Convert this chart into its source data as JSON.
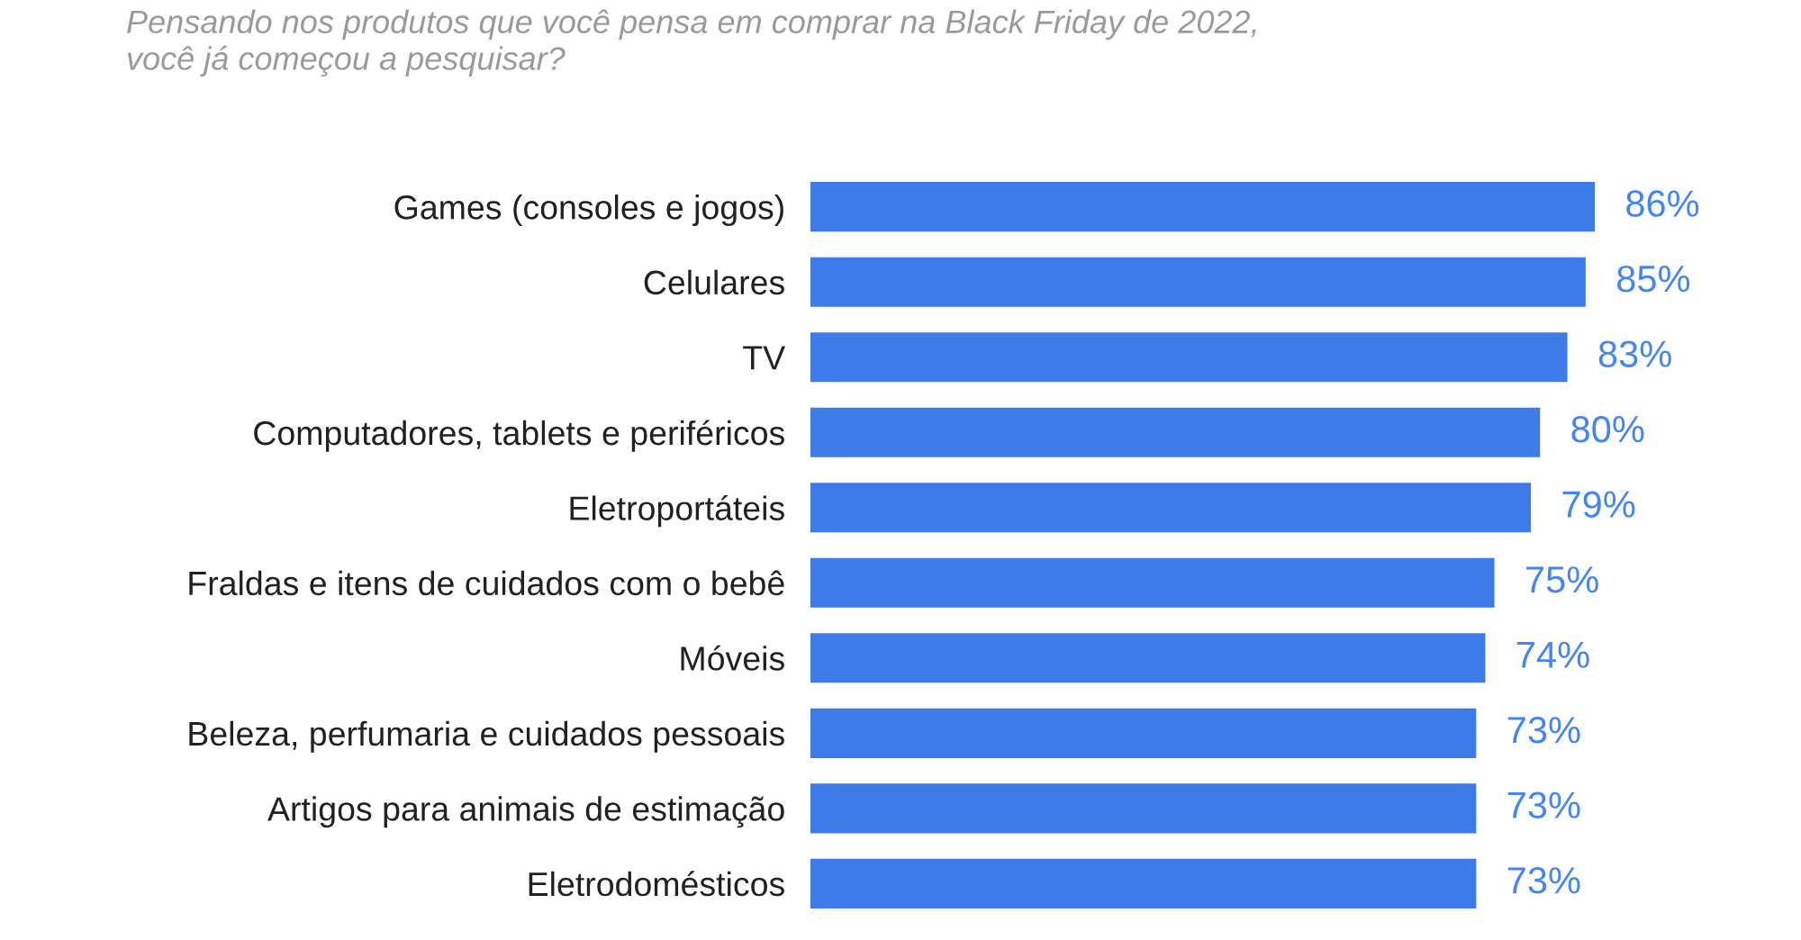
{
  "chart_data": {
    "type": "bar",
    "orientation": "horizontal",
    "title": "Pensando nos produtos que você pensa em comprar na Black Friday de 2022,\nvocê já começou a pesquisar?",
    "categories": [
      "Games (consoles e jogos)",
      "Celulares",
      "TV",
      "Computadores, tablets e periféricos",
      "Eletroportáteis",
      "Fraldas e itens de cuidados com o bebê",
      "Móveis",
      "Beleza, perfumaria e cuidados pessoais",
      "Artigos para animais de estimação",
      "Eletrodomésticos"
    ],
    "values": [
      86,
      85,
      83,
      80,
      79,
      75,
      74,
      73,
      73,
      73
    ],
    "value_labels": [
      "86%",
      "85%",
      "83%",
      "80%",
      "79%",
      "75%",
      "74%",
      "73%",
      "73%",
      "73%"
    ],
    "color": "#3d7be8"
  }
}
